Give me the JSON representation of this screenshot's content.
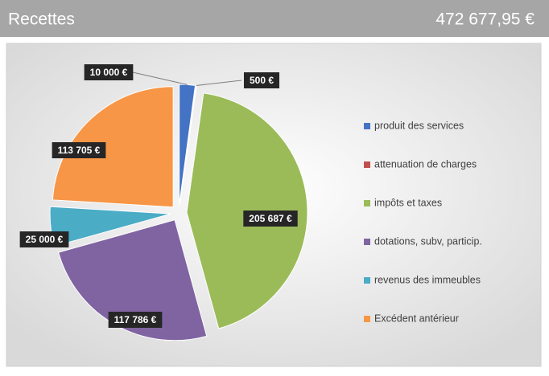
{
  "header": {
    "title": "Recettes",
    "total": "472 677,95 €"
  },
  "chart_data": {
    "type": "pie",
    "categories": [
      "produit des services",
      "attenuation de charges",
      "impôts et taxes",
      "dotations, subv, particip.",
      "revenus des immeubles",
      "Excédent antérieur"
    ],
    "values": [
      10000,
      500,
      205687,
      117786,
      25000,
      113705
    ],
    "value_labels": [
      "10 000 €",
      "500 €",
      "205 687 €",
      "117 786 €",
      "25 000 €",
      "113 705 €"
    ],
    "colors": [
      "#4472c4",
      "#c0504d",
      "#9bbb59",
      "#8064a2",
      "#4bacc6",
      "#f79646"
    ],
    "legend": "right"
  }
}
